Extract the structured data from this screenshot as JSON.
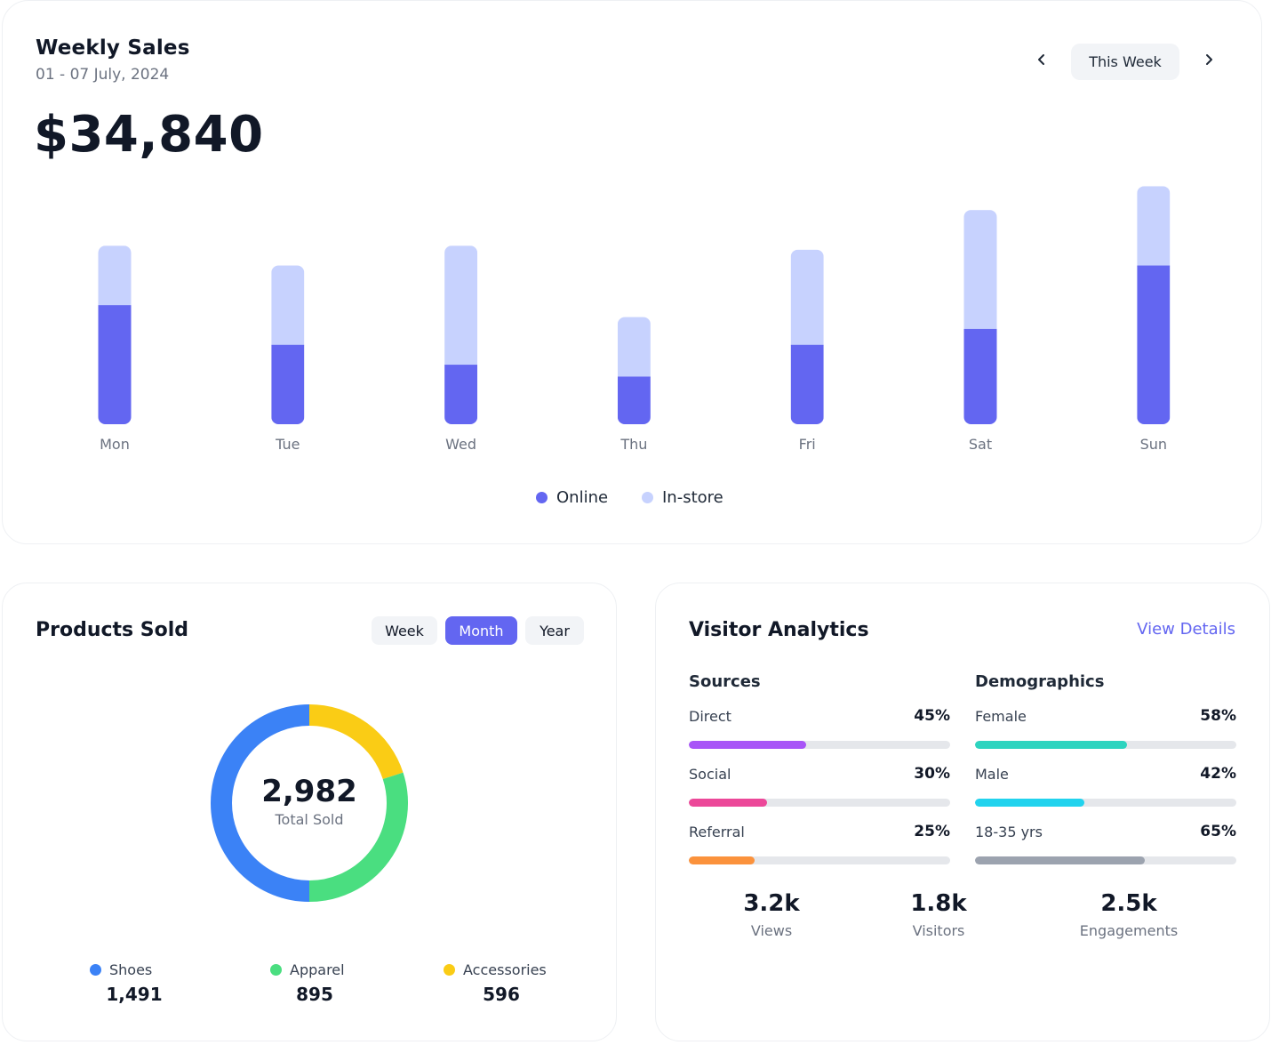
{
  "weekly_sales": {
    "title": "Weekly Sales",
    "date_range": "01 - 07 July, 2024",
    "total": "$34,840",
    "period_label": "This Week",
    "prev_icon": "chevron-left-icon",
    "next_icon": "chevron-right-icon",
    "legend": [
      {
        "label": "Online",
        "color": "#6366f1"
      },
      {
        "label": "In-store",
        "color": "#c7d2fe"
      }
    ]
  },
  "chart_data": [
    {
      "type": "bar",
      "stacked": true,
      "title": "Weekly Sales",
      "categories": [
        "Mon",
        "Tue",
        "Wed",
        "Thu",
        "Fri",
        "Sat",
        "Sun"
      ],
      "series": [
        {
          "name": "Online",
          "color": "#6366f1",
          "values": [
            30,
            20,
            15,
            12,
            20,
            24,
            40
          ]
        },
        {
          "name": "In-store",
          "color": "#c7d2fe",
          "values": [
            15,
            20,
            30,
            15,
            24,
            30,
            20
          ]
        }
      ],
      "xlabel": "",
      "ylabel": "",
      "ylim": [
        0,
        60
      ],
      "grid": false,
      "legend_position": "bottom-center"
    },
    {
      "type": "pie",
      "donut": true,
      "title": "Products Sold",
      "categories": [
        "Shoes",
        "Apparel",
        "Accessories"
      ],
      "values": [
        1491,
        895,
        596
      ],
      "colors": [
        "#3b82f6",
        "#4ade80",
        "#facc15"
      ],
      "center_value": "2,982",
      "center_label": "Total Sold"
    }
  ],
  "products_sold": {
    "title": "Products Sold",
    "tabs": [
      {
        "label": "Week",
        "active": false
      },
      {
        "label": "Month",
        "active": true
      },
      {
        "label": "Year",
        "active": false
      }
    ],
    "total": "2,982",
    "total_label": "Total Sold",
    "categories": [
      {
        "label": "Shoes",
        "value": "1,491",
        "color": "#3b82f6"
      },
      {
        "label": "Apparel",
        "value": "895",
        "color": "#4ade80"
      },
      {
        "label": "Accessories",
        "value": "596",
        "color": "#facc15"
      }
    ]
  },
  "visitor_analytics": {
    "title": "Visitor Analytics",
    "view_details": "View Details",
    "sources": {
      "title": "Sources",
      "items": [
        {
          "label": "Direct",
          "value": "45%",
          "percent": 45,
          "color": "#a855f7"
        },
        {
          "label": "Social",
          "value": "30%",
          "percent": 30,
          "color": "#ec4899"
        },
        {
          "label": "Referral",
          "value": "25%",
          "percent": 25,
          "color": "#fb923c"
        }
      ]
    },
    "demographics": {
      "title": "Demographics",
      "items": [
        {
          "label": "Female",
          "value": "58%",
          "percent": 58,
          "color": "#2dd4bf"
        },
        {
          "label": "Male",
          "value": "42%",
          "percent": 42,
          "color": "#22d3ee"
        },
        {
          "label": "18-35 yrs",
          "value": "65%",
          "percent": 65,
          "color": "#9ca3af"
        }
      ]
    },
    "stats": [
      {
        "value": "3.2k",
        "label": "Views"
      },
      {
        "value": "1.8k",
        "label": "Visitors"
      },
      {
        "value": "2.5k",
        "label": "Engagements"
      }
    ]
  }
}
